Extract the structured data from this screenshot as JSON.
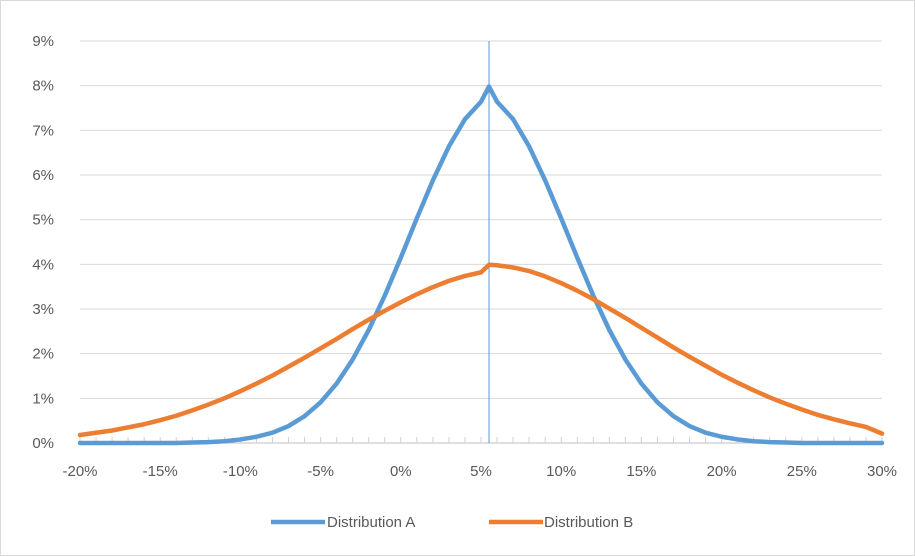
{
  "chart_data": {
    "type": "line",
    "title": "",
    "xlabel": "",
    "ylabel": "",
    "xlim": [
      -0.2,
      0.3
    ],
    "ylim": [
      0,
      0.09
    ],
    "x_ticks": [
      -0.2,
      -0.15,
      -0.1,
      -0.05,
      0,
      0.05,
      0.1,
      0.15,
      0.2,
      0.25,
      0.3
    ],
    "x_tick_labels": [
      "-20%",
      "-15%",
      "-10%",
      "-5%",
      "0%",
      "5%",
      "10%",
      "15%",
      "20%",
      "25%",
      "30%"
    ],
    "y_ticks": [
      0,
      0.01,
      0.02,
      0.03,
      0.04,
      0.05,
      0.06,
      0.07,
      0.08,
      0.09
    ],
    "y_tick_labels": [
      "0%",
      "1%",
      "2%",
      "3%",
      "4%",
      "5%",
      "6%",
      "7%",
      "8%",
      "9%"
    ],
    "grid": "horizontal",
    "legend_position": "bottom",
    "reference_line_x": 0.055,
    "series": [
      {
        "name": "Distribution A",
        "color": "#5b9bd5",
        "points": [
          [
            -0.2,
            0.0
          ],
          [
            -0.19,
            0.0
          ],
          [
            -0.18,
            0.0
          ],
          [
            -0.17,
            0.0
          ],
          [
            -0.16,
            0.0
          ],
          [
            -0.15,
            0.0
          ],
          [
            -0.14,
            0.0
          ],
          [
            -0.13,
            0.0001
          ],
          [
            -0.12,
            0.0002
          ],
          [
            -0.11,
            0.0004
          ],
          [
            -0.1,
            0.0008
          ],
          [
            -0.09,
            0.0014
          ],
          [
            -0.08,
            0.0023
          ],
          [
            -0.07,
            0.0038
          ],
          [
            -0.06,
            0.006
          ],
          [
            -0.05,
            0.0091
          ],
          [
            -0.04,
            0.0133
          ],
          [
            -0.03,
            0.0187
          ],
          [
            -0.02,
            0.0253
          ],
          [
            -0.01,
            0.033
          ],
          [
            0.0,
            0.0415
          ],
          [
            0.01,
            0.0503
          ],
          [
            0.02,
            0.0588
          ],
          [
            0.03,
            0.0664
          ],
          [
            0.04,
            0.0725
          ],
          [
            0.05,
            0.0764
          ],
          [
            0.055,
            0.0798
          ],
          [
            0.06,
            0.0764
          ],
          [
            0.07,
            0.0725
          ],
          [
            0.08,
            0.0664
          ],
          [
            0.09,
            0.0588
          ],
          [
            0.1,
            0.0503
          ],
          [
            0.11,
            0.0415
          ],
          [
            0.12,
            0.033
          ],
          [
            0.13,
            0.0253
          ],
          [
            0.14,
            0.0187
          ],
          [
            0.15,
            0.0133
          ],
          [
            0.16,
            0.0091
          ],
          [
            0.17,
            0.006
          ],
          [
            0.18,
            0.0038
          ],
          [
            0.19,
            0.0023
          ],
          [
            0.2,
            0.0014
          ],
          [
            0.21,
            0.0008
          ],
          [
            0.22,
            0.0004
          ],
          [
            0.23,
            0.0002
          ],
          [
            0.24,
            0.0001
          ],
          [
            0.25,
            0.0
          ],
          [
            0.26,
            0.0
          ],
          [
            0.27,
            0.0
          ],
          [
            0.28,
            0.0
          ],
          [
            0.29,
            0.0
          ],
          [
            0.3,
            0.0
          ]
        ]
      },
      {
        "name": "Distribution B",
        "color": "#ed7d31",
        "points": [
          [
            -0.2,
            0.0018
          ],
          [
            -0.19,
            0.0023
          ],
          [
            -0.18,
            0.0028
          ],
          [
            -0.17,
            0.0035
          ],
          [
            -0.16,
            0.0042
          ],
          [
            -0.15,
            0.0051
          ],
          [
            -0.14,
            0.0061
          ],
          [
            -0.13,
            0.0073
          ],
          [
            -0.12,
            0.0086
          ],
          [
            -0.11,
            0.01
          ],
          [
            -0.1,
            0.0116
          ],
          [
            -0.09,
            0.0133
          ],
          [
            -0.08,
            0.0151
          ],
          [
            -0.07,
            0.0171
          ],
          [
            -0.06,
            0.0191
          ],
          [
            -0.05,
            0.0212
          ],
          [
            -0.04,
            0.0233
          ],
          [
            -0.03,
            0.0255
          ],
          [
            -0.02,
            0.0276
          ],
          [
            -0.01,
            0.0296
          ],
          [
            0.0,
            0.0315
          ],
          [
            0.01,
            0.0333
          ],
          [
            0.02,
            0.0349
          ],
          [
            0.03,
            0.0363
          ],
          [
            0.04,
            0.0374
          ],
          [
            0.05,
            0.0382
          ],
          [
            0.055,
            0.0399
          ],
          [
            0.06,
            0.0398
          ],
          [
            0.07,
            0.0393
          ],
          [
            0.08,
            0.0385
          ],
          [
            0.09,
            0.0373
          ],
          [
            0.1,
            0.0358
          ],
          [
            0.11,
            0.0341
          ],
          [
            0.12,
            0.0322
          ],
          [
            0.13,
            0.0301
          ],
          [
            0.14,
            0.028
          ],
          [
            0.15,
            0.0258
          ],
          [
            0.16,
            0.0236
          ],
          [
            0.17,
            0.0214
          ],
          [
            0.18,
            0.0193
          ],
          [
            0.19,
            0.0173
          ],
          [
            0.2,
            0.0153
          ],
          [
            0.21,
            0.0135
          ],
          [
            0.22,
            0.0118
          ],
          [
            0.23,
            0.0102
          ],
          [
            0.24,
            0.0088
          ],
          [
            0.25,
            0.0075
          ],
          [
            0.26,
            0.0063
          ],
          [
            0.27,
            0.0053
          ],
          [
            0.28,
            0.0044
          ],
          [
            0.29,
            0.0036
          ],
          [
            0.3,
            0.0021
          ]
        ]
      }
    ]
  }
}
